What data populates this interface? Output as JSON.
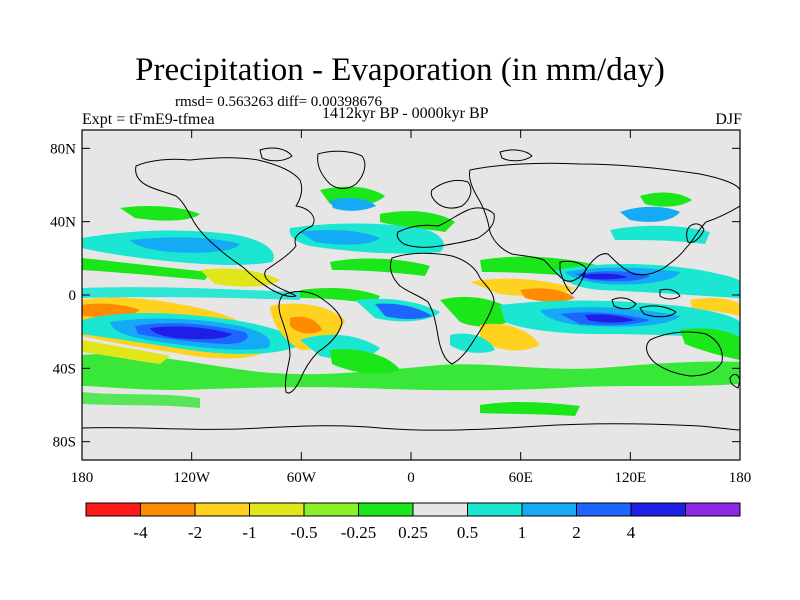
{
  "title": "Precipitation - Evaporation (in mm/day)",
  "stats": "rmsd= 0.563263 diff= 0.00398676",
  "experiment": "Expt = tFmE9-tfmea",
  "period": "1412kyr BP - 0000kyr BP",
  "season": "DJF",
  "latitude_ticks": [
    "80N",
    "40N",
    "0",
    "40S",
    "80S"
  ],
  "longitude_ticks": [
    "180",
    "120W",
    "60W",
    "0",
    "60E",
    "120E",
    "180"
  ],
  "colorbar": {
    "labels": [
      "-4",
      "-2",
      "-1",
      "-0.5",
      "-0.25",
      "0.25",
      "0.5",
      "1",
      "2",
      "4"
    ],
    "colors": [
      "#ff1a1a",
      "#ff8c00",
      "#ffd21f",
      "#e1e61a",
      "#8cf028",
      "#1ae61a",
      "#e6e6e6",
      "#1ae6d2",
      "#14aaf5",
      "#1e64ff",
      "#1e1ee6",
      "#8c28e6"
    ]
  },
  "colors": {
    "neutral_fill": "#e6e6e6",
    "coastline": "#000000"
  }
}
